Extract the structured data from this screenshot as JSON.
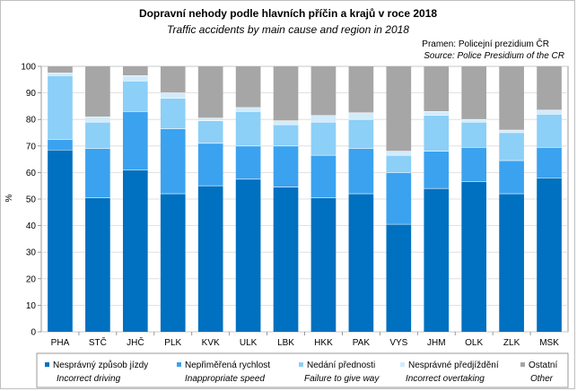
{
  "chart_data": {
    "type": "bar",
    "stacked": true,
    "title": "Dopravní nehody podle hlavních příčin a krajů v roce 2018",
    "subtitle": "Traffic accidents by main cause and region  in 2018",
    "source_cz": "Pramen:  Policejní  prezidium ČR",
    "source_en": "Source: Police Presidium of the CR",
    "ylabel": "%",
    "ylim": [
      0,
      100
    ],
    "yticks": [
      "0",
      "10",
      "20",
      "30",
      "40",
      "50",
      "60",
      "70",
      "80",
      "90",
      "100"
    ],
    "grid": true,
    "legend_position": "bottom",
    "categories": [
      "PHA",
      "STČ",
      "JHČ",
      "PLK",
      "KVK",
      "ULK",
      "LBK",
      "HKK",
      "PAK",
      "VYS",
      "JHM",
      "OLK",
      "ZLK",
      "MSK"
    ],
    "series": [
      {
        "name": "Nesprávný způsob jízdy",
        "name_en": "Incorrect driving",
        "color": "#0070c0",
        "values": [
          68.5,
          50.5,
          61,
          52,
          55,
          57.5,
          54.5,
          50.5,
          52,
          40.5,
          54,
          56.5,
          52,
          58
        ]
      },
      {
        "name": "Nepřiměřená rychlost",
        "name_en": "Inappropriate speed",
        "color": "#3ba2f0",
        "values": [
          4,
          18.5,
          22,
          24.5,
          16,
          12.5,
          15.5,
          16,
          17,
          19.5,
          14,
          13,
          12.5,
          11.5
        ]
      },
      {
        "name": "Nedání přednosti",
        "name_en": "Failure to give way",
        "color": "#8ccff7",
        "values": [
          24,
          10,
          11.5,
          11.5,
          8.5,
          13,
          8,
          12.5,
          11,
          6.5,
          13.5,
          9.5,
          10.5,
          12.5
        ]
      },
      {
        "name": "Nesprávné předjíždění",
        "name_en": "Incorrect overtaking",
        "color": "#d2ebfb",
        "values": [
          1,
          2,
          2,
          2,
          1,
          1.5,
          1.5,
          2.5,
          2.5,
          1.5,
          1.5,
          1,
          1,
          1.5
        ]
      },
      {
        "name": "Ostatní",
        "name_en": "Other",
        "color": "#a6a6a6",
        "values": [
          2.5,
          19,
          3.5,
          10,
          19.5,
          15.5,
          20.5,
          18.5,
          17.5,
          32,
          17,
          20,
          24,
          16.5
        ]
      }
    ]
  }
}
